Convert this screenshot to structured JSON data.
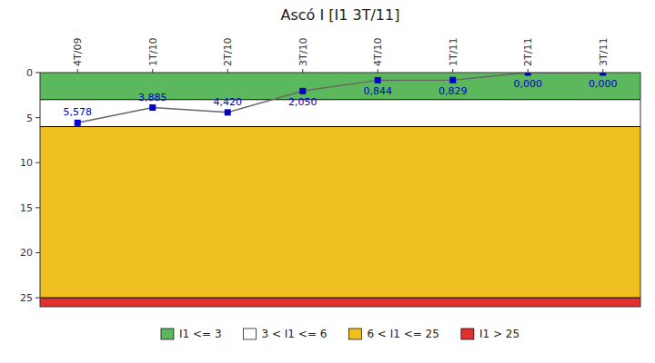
{
  "chart_data": {
    "type": "line",
    "title": "Ascó I [I1 3T/11]",
    "categories": [
      "4T/09",
      "1T/10",
      "2T/10",
      "3T/10",
      "4T/10",
      "1T/11",
      "2T/11",
      "3T/11"
    ],
    "series": [
      {
        "name": "I1",
        "color": "#0000cc",
        "marker": "square",
        "values": [
          5.578,
          3.885,
          4.42,
          2.05,
          0.844,
          0.829,
          0.0,
          0.0
        ],
        "value_labels": [
          "5,578",
          "3,885",
          "4,420",
          "2,050",
          "0,844",
          "0,829",
          "0,000",
          "0,000"
        ]
      }
    ],
    "zones": [
      {
        "name": "I1 <= 3",
        "color": "#5cb85c",
        "from": 0,
        "to": 3
      },
      {
        "name": "3 < I1 <= 6",
        "color": "#ffffff",
        "from": 3,
        "to": 6
      },
      {
        "name": "6 < I1 <= 25",
        "color": "#f0c020",
        "from": 6,
        "to": 25
      },
      {
        "name": "I1 > 25",
        "color": "#e03030",
        "from": 25,
        "to": 26
      }
    ],
    "ylim": [
      26,
      0
    ],
    "yticks": [
      0,
      5,
      10,
      15,
      20,
      25
    ],
    "data_labels": true,
    "grid": false,
    "legend": "bottom"
  }
}
